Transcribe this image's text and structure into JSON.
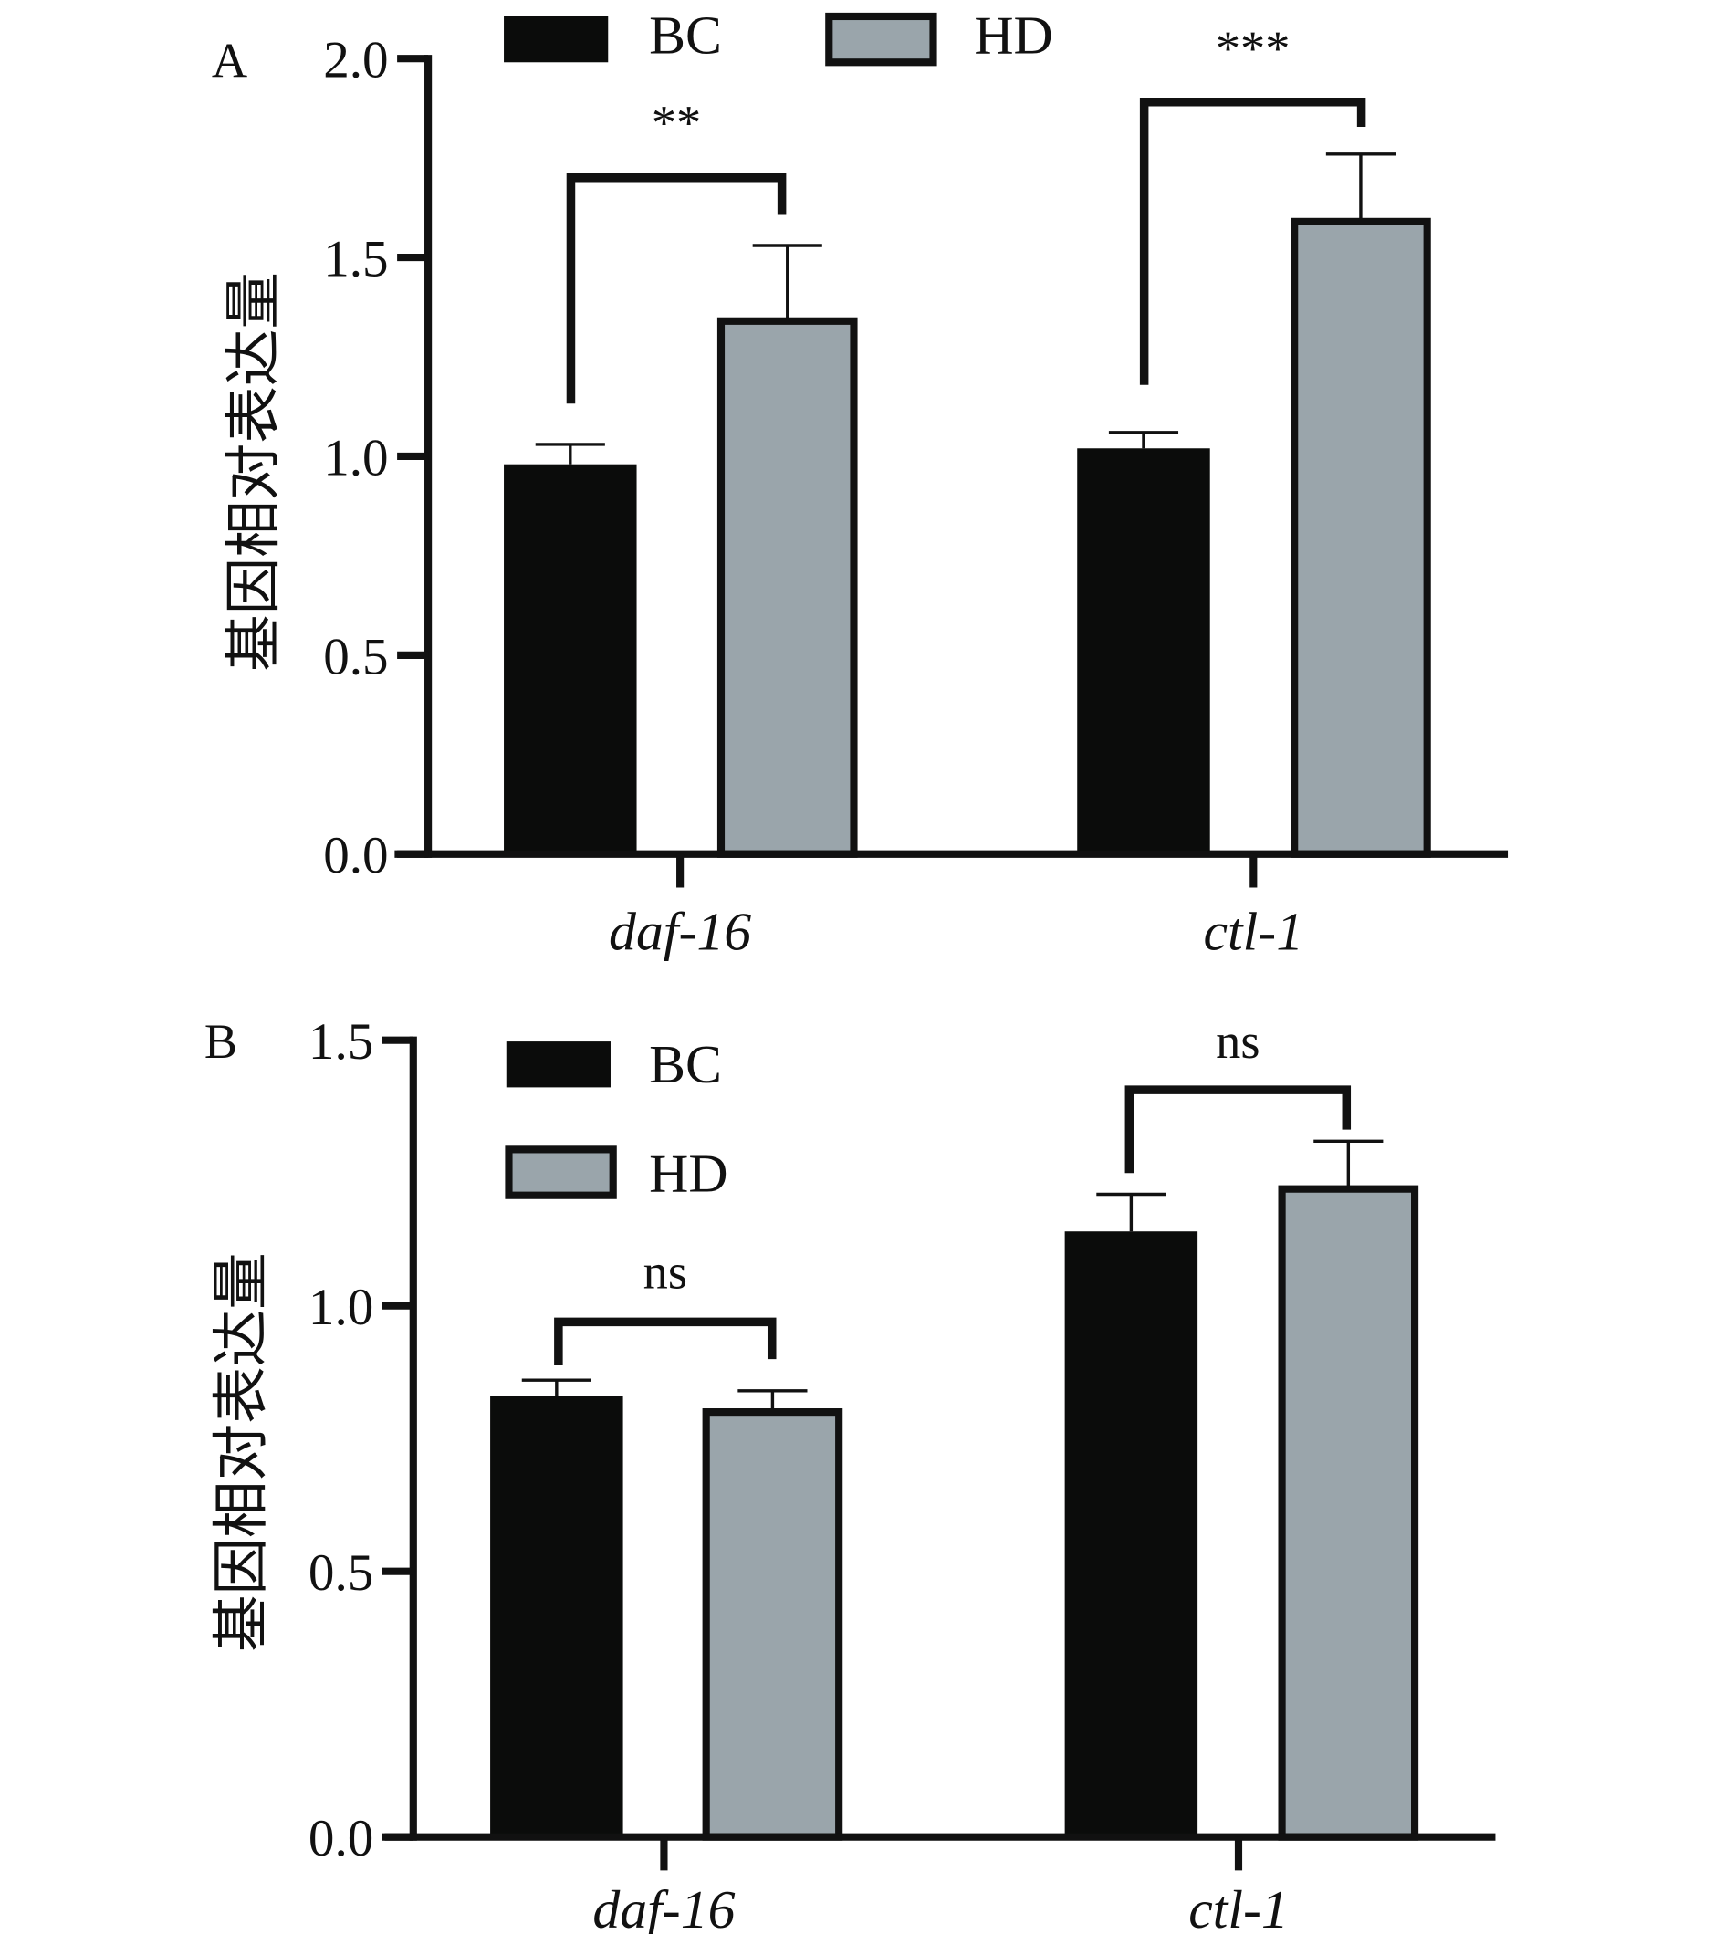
{
  "colors": {
    "BC": "#0b0c0b",
    "HD": "#9aa5ab",
    "axis": "#111111"
  },
  "chart_data": [
    {
      "type": "bar",
      "panel_label": "A",
      "ylabel": "基因相对表达量",
      "ylim": [
        0,
        2.0
      ],
      "yticks": [
        "0.0",
        "0.5",
        "1.0",
        "1.5",
        "2.0"
      ],
      "ytick_values": [
        0,
        0.5,
        1.0,
        1.5,
        2.0
      ],
      "categories": [
        "daf-16",
        "ctl-1"
      ],
      "legend": [
        "BC",
        "HD"
      ],
      "legend_placement": "top-horizontal",
      "series": [
        {
          "name": "BC",
          "values": [
            0.98,
            1.02
          ],
          "errors": [
            0.05,
            0.04
          ]
        },
        {
          "name": "HD",
          "values": [
            1.34,
            1.59
          ],
          "errors": [
            0.19,
            0.17
          ]
        }
      ],
      "significance": [
        "**",
        "***"
      ]
    },
    {
      "type": "bar",
      "panel_label": "B",
      "ylabel": "基因相对表达量",
      "ylim": [
        0,
        1.5
      ],
      "yticks": [
        "0.0",
        "0.5",
        "1.0",
        "1.5"
      ],
      "ytick_values": [
        0,
        0.5,
        1.0,
        1.5
      ],
      "categories": [
        "daf-16",
        "ctl-1"
      ],
      "legend": [
        "BC",
        "HD"
      ],
      "legend_placement": "top-left-vertical",
      "series": [
        {
          "name": "BC",
          "values": [
            0.83,
            1.14
          ],
          "errors": [
            0.03,
            0.07
          ]
        },
        {
          "name": "HD",
          "values": [
            0.8,
            1.22
          ],
          "errors": [
            0.04,
            0.09
          ]
        }
      ],
      "significance": [
        "ns",
        "ns"
      ]
    }
  ]
}
